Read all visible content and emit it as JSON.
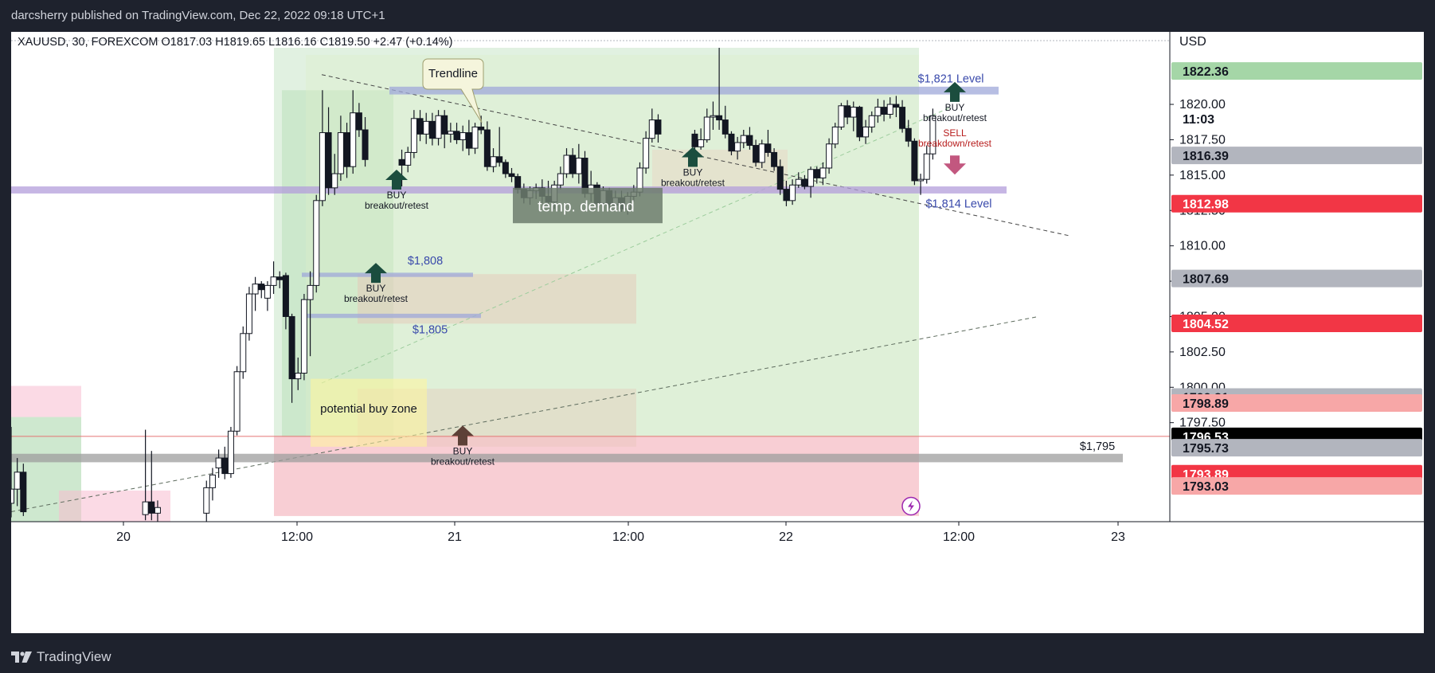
{
  "header": {
    "publisher_line": "darcsherry published on TradingView.com, Dec 22, 2022 09:18 UTC+1"
  },
  "footer": {
    "brand": "TradingView"
  },
  "chart": {
    "legend": {
      "symbol": "XAUUSD, 30, FOREXCOM",
      "open": "O1817.03",
      "high": "H1819.65",
      "low": "L1816.16",
      "close": "C1819.50",
      "change": "+2.47 (+0.14%)"
    },
    "currency": "USD",
    "flash_icon": "lightning-icon"
  },
  "chart_data": {
    "type": "candlestick",
    "symbol": "XAUUSD",
    "interval": "30",
    "exchange": "FOREXCOM",
    "ylim": [
      1790.5,
      1824
    ],
    "xlim": [
      "2022-12-19 17:00",
      "2022-12-23 12:00"
    ],
    "x_ticks": [
      "20",
      "12:00",
      "21",
      "12:00",
      "22",
      "12:00",
      "23"
    ],
    "y_ticks": [
      1797.5,
      1800.0,
      1802.5,
      1805.0,
      1807.5,
      1810.0,
      1812.5,
      1815.0,
      1817.5,
      1820.0
    ],
    "price_labels": [
      {
        "text": "1822.36",
        "value": 1822.36,
        "color": "#a5d6a7",
        "fg": "#131722"
      },
      {
        "text": "11:03",
        "value": 1819.0,
        "color": "#ffffff",
        "fg": "#131722"
      },
      {
        "text": "1816.39",
        "value": 1816.39,
        "color": "#b2b5be",
        "fg": "#131722"
      },
      {
        "text": "1812.98",
        "value": 1812.98,
        "color": "#f23645",
        "fg": "#ffffff"
      },
      {
        "text": "1807.69",
        "value": 1807.69,
        "color": "#b2b5be",
        "fg": "#131722"
      },
      {
        "text": "1804.52",
        "value": 1804.52,
        "color": "#f23645",
        "fg": "#ffffff"
      },
      {
        "text": "1799.31",
        "value": 1799.31,
        "color": "#b2b5be",
        "fg": "#131722"
      },
      {
        "text": "1798.89",
        "value": 1798.89,
        "color": "#f7a7a7",
        "fg": "#131722"
      },
      {
        "text": "1796.53",
        "value": 1796.53,
        "color": "#000000",
        "fg": "#ffffff"
      },
      {
        "text": "1795.73",
        "value": 1795.73,
        "color": "#b2b5be",
        "fg": "#131722"
      },
      {
        "text": "1793.89",
        "value": 1793.89,
        "color": "#f23645",
        "fg": "#ffffff"
      },
      {
        "text": "1793.03",
        "value": 1793.03,
        "color": "#f7a7a7",
        "fg": "#131722"
      }
    ],
    "levels": [
      {
        "label": "$1,821 Level",
        "price": 1821.0,
        "color": "#3949ab"
      },
      {
        "label": "$1,814 Level",
        "price": 1814.0,
        "color": "#3949ab"
      },
      {
        "label": "$1,808",
        "price": 1808.0,
        "color": "#3949ab"
      },
      {
        "label": "$1,805",
        "price": 1805.0,
        "color": "#3949ab"
      },
      {
        "label": "$1,795",
        "price": 1795.0,
        "color": "#131722"
      }
    ],
    "annotations": {
      "trendline_callout": "Trendline",
      "temp_demand": "temp. demand",
      "potential_buy_zone": "potential buy zone",
      "signals": [
        {
          "type": "BUY",
          "sub": "breakout/retest",
          "direction": "up",
          "color": "#1b4d3e"
        },
        {
          "type": "BUY",
          "sub": "breakout/retest",
          "direction": "up",
          "color": "#1b4d3e"
        },
        {
          "type": "BUY",
          "sub": "breakout/retest",
          "direction": "up",
          "color": "#1b4d3e"
        },
        {
          "type": "BUY",
          "sub": "breakout/retest",
          "direction": "up",
          "color": "#1b4d3e"
        },
        {
          "type": "BUY",
          "sub": "breakout/retest",
          "direction": "up",
          "color": "#5d4037"
        },
        {
          "type": "SELL",
          "sub": "breakdown/retest",
          "direction": "down",
          "color": "#b71c1c"
        }
      ]
    },
    "candles": [
      {
        "t": "2022-12-19 17:00",
        "o": 1791.8,
        "h": 1797.2,
        "l": 1790.8,
        "c": 1792.8
      },
      {
        "t": "2022-12-19 17:30",
        "o": 1792.8,
        "h": 1795.0,
        "l": 1791.6,
        "c": 1794.0
      },
      {
        "t": "2022-12-19 18:00",
        "o": 1794.0,
        "h": 1794.6,
        "l": 1790.9,
        "c": 1791.2
      },
      {
        "t": "2022-12-20 04:00",
        "o": 1791.0,
        "h": 1797.0,
        "l": 1790.6,
        "c": 1791.9
      },
      {
        "t": "2022-12-20 04:30",
        "o": 1791.9,
        "h": 1795.5,
        "l": 1790.6,
        "c": 1791.1
      },
      {
        "t": "2022-12-20 05:00",
        "o": 1791.1,
        "h": 1792.0,
        "l": 1790.4,
        "c": 1791.5
      },
      {
        "t": "2022-12-20 09:00",
        "o": 1791.1,
        "h": 1793.4,
        "l": 1790.5,
        "c": 1792.9
      },
      {
        "t": "2022-12-20 09:30",
        "o": 1792.9,
        "h": 1794.3,
        "l": 1792.0,
        "c": 1793.8
      },
      {
        "t": "2022-12-20 10:00",
        "o": 1794.3,
        "h": 1795.6,
        "l": 1793.6,
        "c": 1795.0
      },
      {
        "t": "2022-12-20 10:30",
        "o": 1795.0,
        "h": 1795.8,
        "l": 1793.5,
        "c": 1793.9
      },
      {
        "t": "2022-12-20 11:00",
        "o": 1793.9,
        "h": 1797.2,
        "l": 1793.6,
        "c": 1796.9
      },
      {
        "t": "2022-12-20 11:30",
        "o": 1796.9,
        "h": 1801.5,
        "l": 1796.6,
        "c": 1801.1
      },
      {
        "t": "2022-12-20 12:00",
        "o": 1801.1,
        "h": 1804.3,
        "l": 1800.6,
        "c": 1803.8
      },
      {
        "t": "2022-12-20 12:30",
        "o": 1803.8,
        "h": 1807.1,
        "l": 1803.3,
        "c": 1806.6
      },
      {
        "t": "2022-12-20 13:00",
        "o": 1806.6,
        "h": 1807.8,
        "l": 1805.4,
        "c": 1807.3
      },
      {
        "t": "2022-12-20 13:30",
        "o": 1807.3,
        "h": 1807.5,
        "l": 1806.3,
        "c": 1806.9
      },
      {
        "t": "2022-12-20 14:00",
        "o": 1806.3,
        "h": 1807.5,
        "l": 1805.4,
        "c": 1807.2
      },
      {
        "t": "2022-12-20 14:30",
        "o": 1807.2,
        "h": 1808.9,
        "l": 1806.6,
        "c": 1807.8
      },
      {
        "t": "2022-12-20 15:00",
        "o": 1807.8,
        "h": 1808.2,
        "l": 1807.0,
        "c": 1807.6
      },
      {
        "t": "2022-12-20 15:30",
        "o": 1807.9,
        "h": 1808.1,
        "l": 1804.1,
        "c": 1805.0
      },
      {
        "t": "2022-12-20 16:00",
        "o": 1805.0,
        "h": 1805.2,
        "l": 1798.9,
        "c": 1800.6
      },
      {
        "t": "2022-12-20 16:30",
        "o": 1800.6,
        "h": 1802.1,
        "l": 1799.8,
        "c": 1801.0
      },
      {
        "t": "2022-12-20 17:00",
        "o": 1801.0,
        "h": 1806.6,
        "l": 1800.5,
        "c": 1806.2
      },
      {
        "t": "2022-12-20 17:30",
        "o": 1806.2,
        "h": 1808.2,
        "l": 1802.2,
        "c": 1807.2
      },
      {
        "t": "2022-12-20 18:00",
        "o": 1807.2,
        "h": 1813.6,
        "l": 1806.7,
        "c": 1813.2
      },
      {
        "t": "2022-12-20 18:30",
        "o": 1813.2,
        "h": 1821.0,
        "l": 1812.8,
        "c": 1818.0
      },
      {
        "t": "2022-12-20 19:00",
        "o": 1818.0,
        "h": 1819.8,
        "l": 1813.6,
        "c": 1814.1
      },
      {
        "t": "2022-12-20 19:30",
        "o": 1814.1,
        "h": 1816.5,
        "l": 1813.6,
        "c": 1815.1
      },
      {
        "t": "2022-12-20 20:00",
        "o": 1815.1,
        "h": 1819.2,
        "l": 1814.6,
        "c": 1818.0
      },
      {
        "t": "2022-12-20 20:30",
        "o": 1818.0,
        "h": 1818.7,
        "l": 1814.8,
        "c": 1815.6
      },
      {
        "t": "2022-12-20 21:00",
        "o": 1815.6,
        "h": 1821.0,
        "l": 1815.1,
        "c": 1819.4
      },
      {
        "t": "2022-12-20 21:30",
        "o": 1819.4,
        "h": 1820.1,
        "l": 1817.7,
        "c": 1818.2
      },
      {
        "t": "2022-12-20 22:00",
        "o": 1818.2,
        "h": 1819.1,
        "l": 1815.6,
        "c": 1816.1
      },
      {
        "t": "2022-12-21 01:00",
        "o": 1816.1,
        "h": 1816.8,
        "l": 1814.2,
        "c": 1815.7
      },
      {
        "t": "2022-12-21 01:30",
        "o": 1815.7,
        "h": 1817.0,
        "l": 1815.2,
        "c": 1816.6
      },
      {
        "t": "2022-12-21 02:00",
        "o": 1816.6,
        "h": 1819.6,
        "l": 1816.2,
        "c": 1819.0
      },
      {
        "t": "2022-12-21 02:30",
        "o": 1819.0,
        "h": 1819.6,
        "l": 1817.4,
        "c": 1817.9
      },
      {
        "t": "2022-12-21 03:00",
        "o": 1817.9,
        "h": 1819.4,
        "l": 1817.2,
        "c": 1818.8
      },
      {
        "t": "2022-12-21 03:30",
        "o": 1818.8,
        "h": 1819.4,
        "l": 1817.1,
        "c": 1817.6
      },
      {
        "t": "2022-12-21 04:00",
        "o": 1817.6,
        "h": 1819.6,
        "l": 1817.1,
        "c": 1819.2
      },
      {
        "t": "2022-12-21 04:30",
        "o": 1819.2,
        "h": 1819.6,
        "l": 1816.9,
        "c": 1817.9
      },
      {
        "t": "2022-12-21 05:00",
        "o": 1817.9,
        "h": 1818.7,
        "l": 1817.3,
        "c": 1818.1
      },
      {
        "t": "2022-12-21 05:30",
        "o": 1818.1,
        "h": 1818.7,
        "l": 1817.2,
        "c": 1817.5
      },
      {
        "t": "2022-12-21 06:00",
        "o": 1817.5,
        "h": 1818.5,
        "l": 1816.7,
        "c": 1818.0
      },
      {
        "t": "2022-12-21 06:30",
        "o": 1818.0,
        "h": 1818.9,
        "l": 1816.4,
        "c": 1816.9
      },
      {
        "t": "2022-12-21 07:00",
        "o": 1816.9,
        "h": 1818.7,
        "l": 1816.5,
        "c": 1818.4
      },
      {
        "t": "2022-12-21 07:30",
        "o": 1818.4,
        "h": 1819.2,
        "l": 1817.9,
        "c": 1818.2
      },
      {
        "t": "2022-12-21 08:00",
        "o": 1818.2,
        "h": 1818.8,
        "l": 1815.3,
        "c": 1815.6
      },
      {
        "t": "2022-12-21 08:30",
        "o": 1815.6,
        "h": 1816.9,
        "l": 1815.2,
        "c": 1816.3
      },
      {
        "t": "2022-12-21 09:00",
        "o": 1816.3,
        "h": 1818.4,
        "l": 1815.6,
        "c": 1815.9
      },
      {
        "t": "2022-12-21 09:30",
        "o": 1815.9,
        "h": 1816.1,
        "l": 1814.8,
        "c": 1815.1
      },
      {
        "t": "2022-12-21 10:00",
        "o": 1815.1,
        "h": 1815.5,
        "l": 1814.5,
        "c": 1814.9
      },
      {
        "t": "2022-12-21 10:30",
        "o": 1814.9,
        "h": 1815.1,
        "l": 1813.7,
        "c": 1814.0
      },
      {
        "t": "2022-12-21 11:00",
        "o": 1814.0,
        "h": 1814.4,
        "l": 1813.0,
        "c": 1813.4
      },
      {
        "t": "2022-12-21 11:30",
        "o": 1813.4,
        "h": 1814.2,
        "l": 1812.9,
        "c": 1813.9
      },
      {
        "t": "2022-12-21 12:00",
        "o": 1813.9,
        "h": 1814.4,
        "l": 1813.3,
        "c": 1814.1
      },
      {
        "t": "2022-12-21 12:30",
        "o": 1814.1,
        "h": 1814.7,
        "l": 1813.0,
        "c": 1813.5
      },
      {
        "t": "2022-12-21 13:00",
        "o": 1813.5,
        "h": 1814.6,
        "l": 1812.7,
        "c": 1813.1
      },
      {
        "t": "2022-12-21 13:30",
        "o": 1813.1,
        "h": 1814.6,
        "l": 1812.6,
        "c": 1814.3
      },
      {
        "t": "2022-12-21 14:00",
        "o": 1814.3,
        "h": 1815.6,
        "l": 1814.0,
        "c": 1815.1
      },
      {
        "t": "2022-12-21 14:30",
        "o": 1815.1,
        "h": 1816.9,
        "l": 1814.8,
        "c": 1816.4
      },
      {
        "t": "2022-12-21 15:00",
        "o": 1816.4,
        "h": 1816.9,
        "l": 1814.8,
        "c": 1815.1
      },
      {
        "t": "2022-12-21 15:30",
        "o": 1815.1,
        "h": 1817.2,
        "l": 1814.4,
        "c": 1816.2
      },
      {
        "t": "2022-12-21 16:00",
        "o": 1816.2,
        "h": 1816.7,
        "l": 1813.4,
        "c": 1813.7
      },
      {
        "t": "2022-12-21 16:30",
        "o": 1813.7,
        "h": 1815.3,
        "l": 1813.1,
        "c": 1814.3
      },
      {
        "t": "2022-12-21 17:00",
        "o": 1814.3,
        "h": 1814.5,
        "l": 1812.7,
        "c": 1813.0
      },
      {
        "t": "2022-12-21 17:30",
        "o": 1813.0,
        "h": 1814.2,
        "l": 1812.7,
        "c": 1813.9
      },
      {
        "t": "2022-12-21 18:00",
        "o": 1813.9,
        "h": 1814.1,
        "l": 1812.6,
        "c": 1812.9
      },
      {
        "t": "2022-12-21 18:30",
        "o": 1812.9,
        "h": 1813.9,
        "l": 1812.5,
        "c": 1813.4
      },
      {
        "t": "2022-12-21 19:00",
        "o": 1813.4,
        "h": 1813.9,
        "l": 1812.4,
        "c": 1812.6
      },
      {
        "t": "2022-12-21 19:30",
        "o": 1812.6,
        "h": 1813.8,
        "l": 1812.2,
        "c": 1813.5
      },
      {
        "t": "2022-12-21 20:00",
        "o": 1813.5,
        "h": 1814.3,
        "l": 1813.1,
        "c": 1813.8
      },
      {
        "t": "2022-12-21 20:30",
        "o": 1813.8,
        "h": 1815.9,
        "l": 1813.5,
        "c": 1815.5
      },
      {
        "t": "2022-12-21 21:00",
        "o": 1815.5,
        "h": 1818.1,
        "l": 1815.1,
        "c": 1817.6
      },
      {
        "t": "2022-12-21 21:30",
        "o": 1817.6,
        "h": 1819.7,
        "l": 1817.3,
        "c": 1818.9
      },
      {
        "t": "2022-12-21 22:00",
        "o": 1818.9,
        "h": 1819.3,
        "l": 1817.3,
        "c": 1817.9
      },
      {
        "t": "2022-12-22 01:00",
        "o": 1817.9,
        "h": 1818.2,
        "l": 1816.6,
        "c": 1817.0
      },
      {
        "t": "2022-12-22 01:30",
        "o": 1817.0,
        "h": 1818.3,
        "l": 1816.8,
        "c": 1817.5
      },
      {
        "t": "2022-12-22 02:00",
        "o": 1817.5,
        "h": 1819.7,
        "l": 1817.3,
        "c": 1819.1
      },
      {
        "t": "2022-12-22 02:30",
        "o": 1819.1,
        "h": 1820.2,
        "l": 1818.2,
        "c": 1819.2
      },
      {
        "t": "2022-12-22 03:00",
        "o": 1819.2,
        "h": 1824.0,
        "l": 1818.2,
        "c": 1818.9
      },
      {
        "t": "2022-12-22 03:30",
        "o": 1818.9,
        "h": 1819.9,
        "l": 1817.6,
        "c": 1817.9
      },
      {
        "t": "2022-12-22 04:00",
        "o": 1817.9,
        "h": 1818.1,
        "l": 1816.4,
        "c": 1816.7
      },
      {
        "t": "2022-12-22 04:30",
        "o": 1816.7,
        "h": 1817.7,
        "l": 1816.1,
        "c": 1817.3
      },
      {
        "t": "2022-12-22 05:00",
        "o": 1817.3,
        "h": 1818.2,
        "l": 1816.9,
        "c": 1817.8
      },
      {
        "t": "2022-12-22 05:30",
        "o": 1817.8,
        "h": 1818.4,
        "l": 1816.8,
        "c": 1817.1
      },
      {
        "t": "2022-12-22 06:00",
        "o": 1817.1,
        "h": 1817.5,
        "l": 1815.6,
        "c": 1815.9
      },
      {
        "t": "2022-12-22 06:30",
        "o": 1815.9,
        "h": 1817.5,
        "l": 1815.5,
        "c": 1817.2
      },
      {
        "t": "2022-12-22 07:00",
        "o": 1817.2,
        "h": 1818.2,
        "l": 1816.3,
        "c": 1816.6
      },
      {
        "t": "2022-12-22 07:30",
        "o": 1816.6,
        "h": 1816.9,
        "l": 1815.3,
        "c": 1815.6
      },
      {
        "t": "2022-12-22 08:00",
        "o": 1815.6,
        "h": 1816.1,
        "l": 1813.6,
        "c": 1814.0
      },
      {
        "t": "2022-12-22 08:30",
        "o": 1814.0,
        "h": 1814.6,
        "l": 1812.8,
        "c": 1813.2
      },
      {
        "t": "2022-12-22 09:00",
        "o": 1813.2,
        "h": 1814.7,
        "l": 1812.9,
        "c": 1814.3
      },
      {
        "t": "2022-12-22 09:30",
        "o": 1814.3,
        "h": 1815.2,
        "l": 1814.1,
        "c": 1814.7
      },
      {
        "t": "2022-12-22 10:00",
        "o": 1814.7,
        "h": 1815.0,
        "l": 1814.0,
        "c": 1814.2
      },
      {
        "t": "2022-12-22 10:30",
        "o": 1814.2,
        "h": 1815.6,
        "l": 1813.4,
        "c": 1815.4
      },
      {
        "t": "2022-12-22 11:00",
        "o": 1815.4,
        "h": 1815.6,
        "l": 1814.4,
        "c": 1814.8
      },
      {
        "t": "2022-12-22 11:30",
        "o": 1814.8,
        "h": 1815.9,
        "l": 1814.3,
        "c": 1815.5
      },
      {
        "t": "2022-12-22 12:00",
        "o": 1815.5,
        "h": 1817.6,
        "l": 1815.1,
        "c": 1817.2
      },
      {
        "t": "2022-12-22 12:30",
        "o": 1817.2,
        "h": 1818.7,
        "l": 1816.9,
        "c": 1818.4
      },
      {
        "t": "2022-12-22 13:00",
        "o": 1818.4,
        "h": 1820.1,
        "l": 1818.2,
        "c": 1819.9
      },
      {
        "t": "2022-12-22 13:30",
        "o": 1819.9,
        "h": 1820.3,
        "l": 1818.6,
        "c": 1819.1
      },
      {
        "t": "2022-12-22 14:00",
        "o": 1819.1,
        "h": 1820.2,
        "l": 1818.1,
        "c": 1819.8
      },
      {
        "t": "2022-12-22 14:30",
        "o": 1819.8,
        "h": 1819.9,
        "l": 1817.4,
        "c": 1817.7
      },
      {
        "t": "2022-12-22 15:00",
        "o": 1817.7,
        "h": 1818.9,
        "l": 1817.2,
        "c": 1818.4
      },
      {
        "t": "2022-12-22 15:30",
        "o": 1818.4,
        "h": 1819.5,
        "l": 1818.0,
        "c": 1819.2
      },
      {
        "t": "2022-12-22 16:00",
        "o": 1819.2,
        "h": 1820.4,
        "l": 1818.7,
        "c": 1819.8
      },
      {
        "t": "2022-12-22 16:30",
        "o": 1819.8,
        "h": 1820.3,
        "l": 1818.8,
        "c": 1819.3
      },
      {
        "t": "2022-12-22 17:00",
        "o": 1819.3,
        "h": 1820.5,
        "l": 1819.0,
        "c": 1820.0
      },
      {
        "t": "2022-12-22 17:30",
        "o": 1820.0,
        "h": 1820.6,
        "l": 1819.1,
        "c": 1819.8
      },
      {
        "t": "2022-12-22 18:00",
        "o": 1819.8,
        "h": 1820.3,
        "l": 1818.0,
        "c": 1818.3
      },
      {
        "t": "2022-12-22 18:30",
        "o": 1818.3,
        "h": 1818.9,
        "l": 1817.0,
        "c": 1817.4
      },
      {
        "t": "2022-12-22 19:00",
        "o": 1817.4,
        "h": 1817.6,
        "l": 1814.3,
        "c": 1814.6
      },
      {
        "t": "2022-12-22 19:30",
        "o": 1814.6,
        "h": 1815.1,
        "l": 1813.6,
        "c": 1814.7
      },
      {
        "t": "2022-12-22 20:00",
        "o": 1814.7,
        "h": 1817.1,
        "l": 1814.4,
        "c": 1816.5
      },
      {
        "t": "2022-12-22 20:30",
        "o": 1816.5,
        "h": 1819.7,
        "l": 1816.1,
        "c": 1819.2
      }
    ]
  }
}
